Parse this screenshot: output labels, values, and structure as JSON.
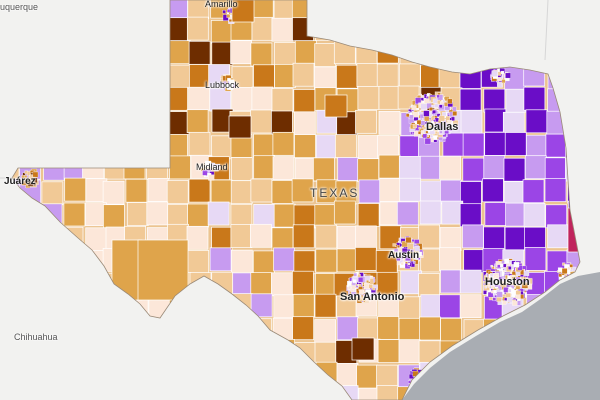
{
  "labels": {
    "state": "TEXAS",
    "albuquerque": "uquerque",
    "amarillo": "Amarillo",
    "lubbock": "Lubbock",
    "midland": "Midland",
    "juarez": "Juárez",
    "chihuahua": "Chihuahua",
    "dallas": "Dallas",
    "austin": "Austin",
    "san_antonio": "San Antonio",
    "houston": "Houston"
  },
  "colors": {
    "background": "#f2f2f0",
    "gulf": "#a9adb3",
    "state_fill": "#ecc490",
    "county_border": "#ffffff",
    "diverging_scale": [
      "#6a0dc7",
      "#9b45e6",
      "#c79bf0",
      "#e7d9f5",
      "#fce7d9",
      "#f1c996",
      "#dfa44b",
      "#c9781a",
      "#6e2d00"
    ],
    "highlight_county": "#c0245c"
  }
}
